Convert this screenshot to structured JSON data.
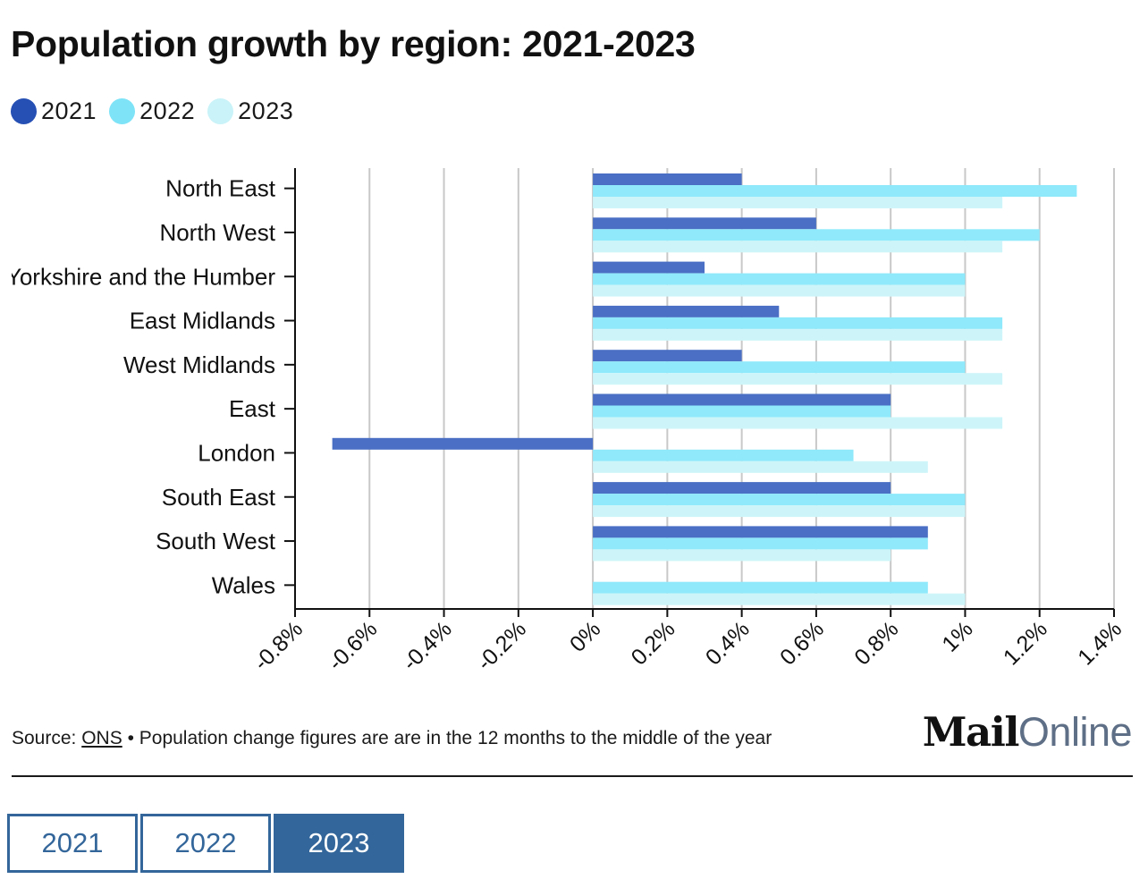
{
  "title": "Population growth by region: 2021-2023",
  "legend": [
    {
      "label": "2021",
      "color": "#2650b4"
    },
    {
      "label": "2022",
      "color": "#7ee3f7"
    },
    {
      "label": "2023",
      "color": "#c9f3f8"
    }
  ],
  "chart_data": {
    "type": "bar",
    "orientation": "horizontal",
    "categories": [
      "North East",
      "North West",
      "Yorkshire and the Humber",
      "East Midlands",
      "West Midlands",
      "East",
      "London",
      "South East",
      "South West",
      "Wales"
    ],
    "series": [
      {
        "name": "2021",
        "color": "#4a6fc4",
        "values": [
          0.4,
          0.6,
          0.3,
          0.5,
          0.4,
          0.8,
          -0.7,
          0.8,
          0.9,
          null
        ]
      },
      {
        "name": "2022",
        "color": "#8fe9fb",
        "values": [
          1.3,
          1.2,
          1.0,
          1.1,
          1.0,
          0.8,
          0.7,
          1.0,
          0.9,
          0.9
        ]
      },
      {
        "name": "2023",
        "color": "#cdf5f9",
        "values": [
          1.1,
          1.1,
          1.0,
          1.1,
          1.1,
          1.1,
          0.9,
          1.0,
          0.8,
          1.0
        ]
      }
    ],
    "xlim": [
      -0.8,
      1.4
    ],
    "xticks": [
      -0.8,
      -0.6,
      -0.4,
      -0.2,
      0,
      0.2,
      0.4,
      0.6,
      0.8,
      1,
      1.2,
      1.4
    ],
    "xtick_labels": [
      "-0.8%",
      "-0.6%",
      "-0.4%",
      "-0.2%",
      "0%",
      "0.2%",
      "0.4%",
      "0.6%",
      "0.8%",
      "1%",
      "1.2%",
      "1.4%"
    ],
    "grid": true,
    "legend_position": "top-left"
  },
  "footer": {
    "source_prefix": "Source: ",
    "source_link": "ONS",
    "note": " • Population change figures are are in the 12 months to the middle of the year"
  },
  "logo": {
    "bold": "Mail",
    "light": "Online"
  },
  "tabs": [
    {
      "label": "2021",
      "active": false
    },
    {
      "label": "2022",
      "active": false
    },
    {
      "label": "2023",
      "active": true
    }
  ]
}
